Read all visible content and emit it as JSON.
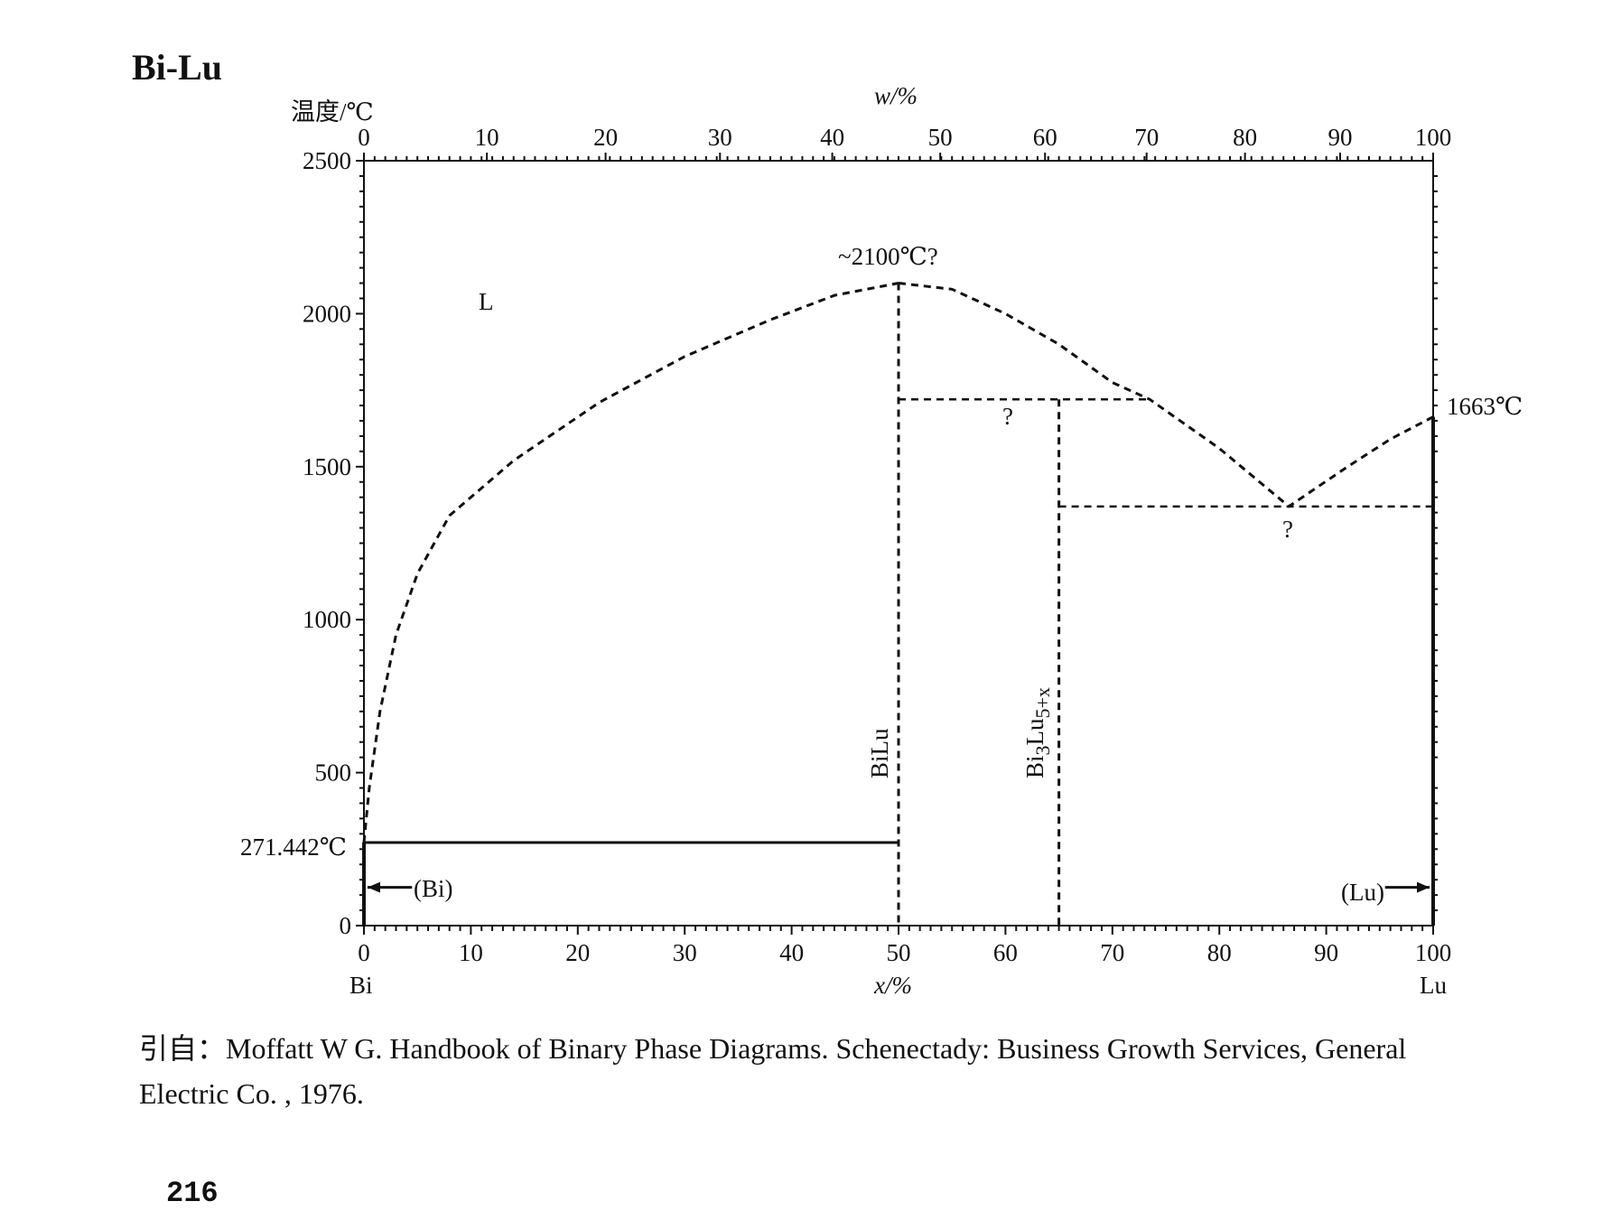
{
  "title": "Bi-Lu",
  "y_axis_label": "温度/℃",
  "top_axis_label": "w/%",
  "bottom_axis_label": "x/%",
  "left_element": "Bi",
  "right_element": "Lu",
  "citation": {
    "line1_prefix": "引自：",
    "line1": "Moffatt W G. Handbook of Binary Phase Diagrams. Schenectady: Business Growth Services, General",
    "line2": "Electric Co. , 1976."
  },
  "page_number": "216",
  "chart_data": {
    "type": "phase-diagram",
    "ylim": [
      0,
      2500
    ],
    "xlim": [
      0,
      100
    ],
    "y_ticks": [
      "0",
      "500",
      "1000",
      "1500",
      "2000",
      "2500"
    ],
    "x_ticks_bottom": [
      "0",
      "10",
      "20",
      "30",
      "40",
      "50",
      "60",
      "70",
      "80",
      "90",
      "100"
    ],
    "top_ticks": [
      {
        "w": 0,
        "x": 0,
        "label": "0"
      },
      {
        "w": 10,
        "x": 11.5,
        "label": "10"
      },
      {
        "w": 20,
        "x": 22.6,
        "label": "20"
      },
      {
        "w": 30,
        "x": 33.3,
        "label": "30"
      },
      {
        "w": 40,
        "x": 43.8,
        "label": "40"
      },
      {
        "w": 50,
        "x": 53.9,
        "label": "50"
      },
      {
        "w": 60,
        "x": 63.7,
        "label": "60"
      },
      {
        "w": 70,
        "x": 73.2,
        "label": "70"
      },
      {
        "w": 80,
        "x": 82.4,
        "label": "80"
      },
      {
        "w": 90,
        "x": 91.3,
        "label": "90"
      },
      {
        "w": 100,
        "x": 100,
        "label": "100"
      }
    ],
    "liquidus_left": [
      [
        0,
        271.442
      ],
      [
        0.5,
        450
      ],
      [
        1.5,
        700
      ],
      [
        3,
        950
      ],
      [
        5,
        1150
      ],
      [
        8,
        1340
      ],
      [
        14,
        1520
      ],
      [
        22,
        1710
      ],
      [
        30,
        1860
      ],
      [
        38,
        1980
      ],
      [
        44,
        2060
      ],
      [
        50,
        2100
      ]
    ],
    "liquidus_right": [
      [
        50,
        2100
      ],
      [
        55,
        2080
      ],
      [
        60,
        2000
      ],
      [
        65,
        1900
      ],
      [
        70,
        1775
      ],
      [
        73.5,
        1720
      ],
      [
        80,
        1560
      ],
      [
        86.5,
        1370
      ],
      [
        92,
        1500
      ],
      [
        96,
        1590
      ],
      [
        100,
        1663
      ]
    ],
    "compounds": [
      {
        "name": "BiLu",
        "x": 50,
        "top": 2100
      },
      {
        "name": "Bi3Lu5+x",
        "x": 65,
        "top": 1720
      }
    ],
    "peritectic": {
      "x_from": 50,
      "x_to": 73.5,
      "T": 1720,
      "mark": "?"
    },
    "eutectic": {
      "x_from": 65,
      "x_to": 100,
      "T": 1370,
      "x": 86.5,
      "mark": "?"
    },
    "eutectic_bi": {
      "x_from": 0,
      "x_to": 50,
      "T": 271.442
    },
    "annotations": {
      "liquid": "L",
      "max_temp": "~2100℃?",
      "bi_melt": "271.442℃",
      "lu_melt": "1663℃",
      "bi_phase": "(Bi)",
      "lu_phase": "(Lu)",
      "compound_1": "BiLu",
      "compound_2": "Bi",
      "compound_2_sub": "3",
      "compound_2_mid": "Lu",
      "compound_2_sub2": "5+x"
    }
  }
}
